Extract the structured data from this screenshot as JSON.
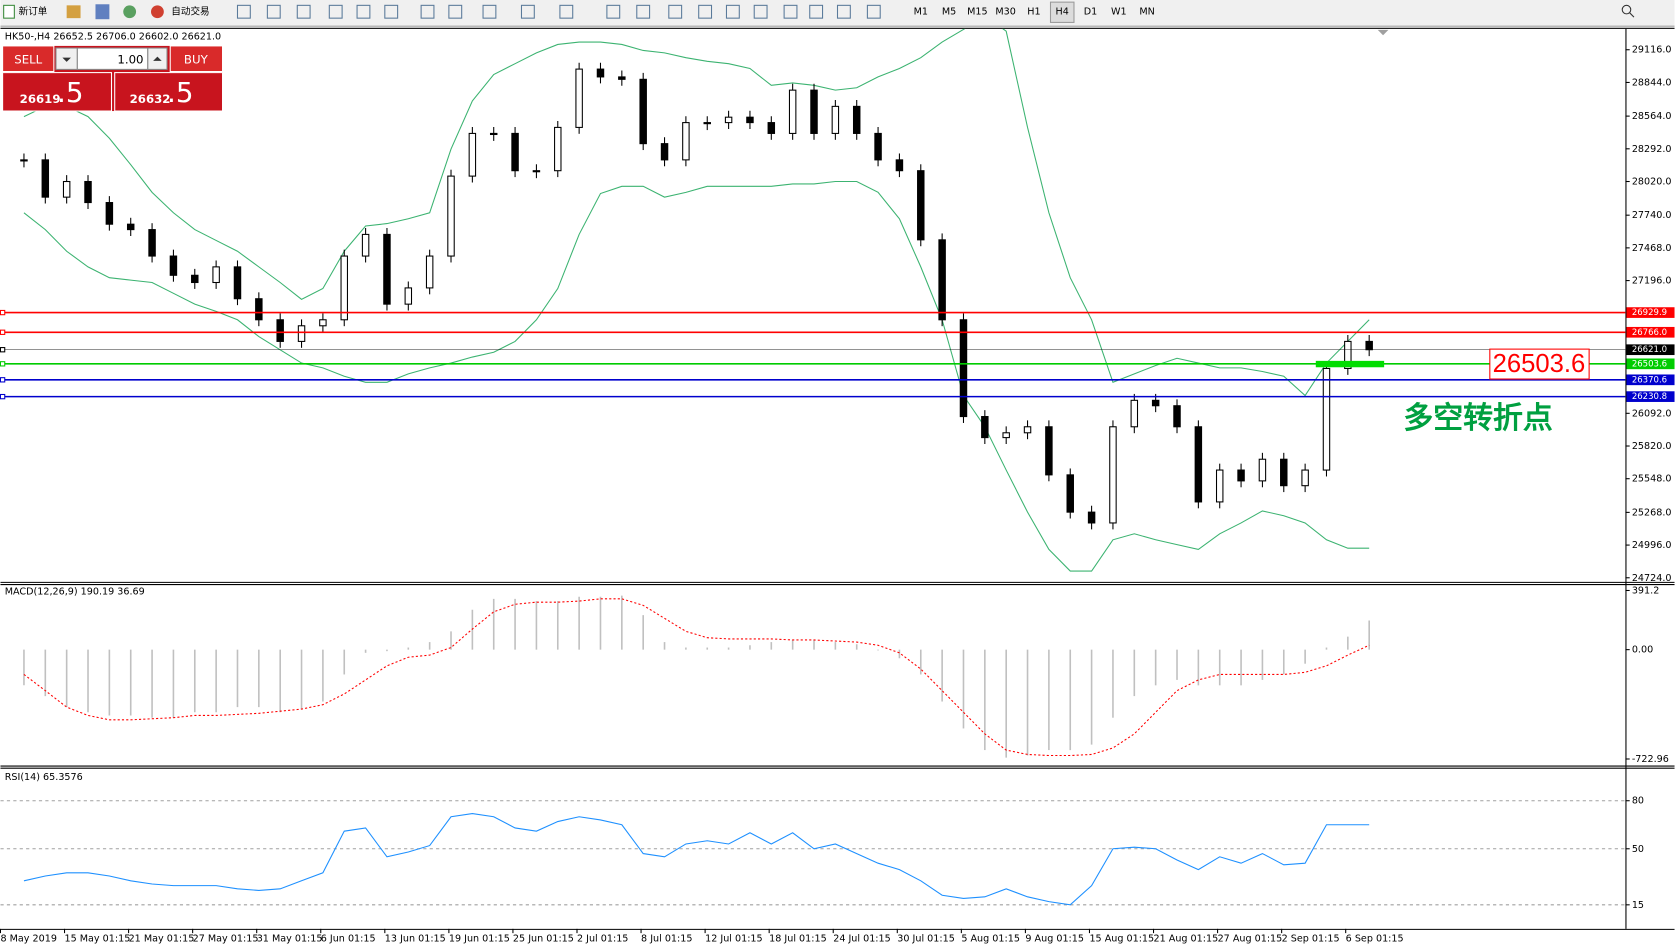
{
  "toolbar": {
    "new_order": "新订单",
    "auto_trading": "自动交易",
    "timeframes": [
      "M1",
      "M5",
      "M15",
      "M30",
      "H1",
      "H4",
      "D1",
      "W1",
      "MN"
    ]
  },
  "trade_panel": {
    "sell": "SELL",
    "buy": "BUY",
    "lots": "1.00",
    "bid": "26619",
    "bid_pips": ".5",
    "ask": "26632",
    "ask_pips": ".5"
  },
  "chart_data": [
    {
      "type": "candlestick",
      "title": "HK50-,H4  26652.5 26706.0 26602.0 26621.0",
      "categories": [
        "8 May 2019",
        null,
        null,
        "15 May 01:15",
        null,
        null,
        "21 May 01:15",
        null,
        null,
        "27 May 01:15",
        null,
        null,
        "31 May 01:15",
        null,
        null,
        "6 Jun 01:15",
        null,
        null,
        "13 Jun 01:15",
        null,
        null,
        "19 Jun 01:15",
        null,
        null,
        "25 Jun 01:15",
        null,
        null,
        "2 Jul 01:15",
        null,
        null,
        "8 Jul 01:15",
        null,
        null,
        "12 Jul 01:15",
        null,
        null,
        "18 Jul 01:15",
        null,
        null,
        "24 Jul 01:15",
        null,
        null,
        "30 Jul 01:15",
        null,
        null,
        "5 Aug 01:15",
        null,
        null,
        "9 Aug 01:15",
        null,
        null,
        "15 Aug 01:15",
        null,
        null,
        "21 Aug 01:15",
        null,
        null,
        "27 Aug 01:15",
        null,
        null,
        "2 Sep 01:15",
        null,
        null,
        "6 Sep 01:15"
      ],
      "values": [
        28200,
        27890,
        28020,
        27845,
        27665,
        27620,
        27400,
        27240,
        27180,
        27310,
        27045,
        26870,
        26690,
        26820,
        26870,
        27400,
        27580,
        27000,
        27135,
        27400,
        28065,
        28420,
        28420,
        28110,
        28110,
        28470,
        28955,
        28890,
        28870,
        28335,
        28200,
        28510,
        28510,
        28555,
        28510,
        28420,
        28780,
        28420,
        28645,
        28420,
        28200,
        28110,
        27535,
        26870,
        26065,
        25890,
        25930,
        25980,
        25580,
        25270,
        25180,
        25980,
        26200,
        26155,
        25980,
        25355,
        25620,
        25530,
        25710,
        25490,
        25620,
        26465,
        26690,
        26621
      ],
      "color": "#000000",
      "bands": {
        "color": "#3cb371",
        "upper": [
          28560,
          28645,
          28645,
          28560,
          28380,
          28160,
          27930,
          27760,
          27620,
          27530,
          27440,
          27310,
          27180,
          27040,
          27130,
          27440,
          27650,
          27670,
          27710,
          27760,
          28290,
          28690,
          28910,
          29000,
          29090,
          29160,
          29180,
          29180,
          29160,
          29110,
          29090,
          29050,
          29020,
          29000,
          28960,
          28820,
          28840,
          28820,
          28780,
          28800,
          28890,
          28960,
          29050,
          29180,
          29285,
          29400,
          29270,
          28470,
          27760,
          27220,
          26870,
          26350,
          26420,
          26490,
          26550,
          26510,
          26470,
          26470,
          26440,
          26400,
          26240,
          26510,
          26690,
          26870
        ],
        "lower": [
          27760,
          27620,
          27440,
          27310,
          27220,
          27200,
          27180,
          27090,
          27000,
          26940,
          26870,
          26730,
          26620,
          26510,
          26470,
          26400,
          26350,
          26350,
          26420,
          26470,
          26510,
          26560,
          26600,
          26690,
          26870,
          27130,
          27580,
          27920,
          27980,
          27980,
          27890,
          27930,
          27980,
          27980,
          27980,
          27980,
          28000,
          28000,
          28020,
          28020,
          27930,
          27710,
          27310,
          26870,
          26240,
          25980,
          25620,
          25270,
          24960,
          24780,
          24780,
          25040,
          25090,
          25040,
          25000,
          24960,
          25090,
          25180,
          25280,
          25240,
          25180,
          25040,
          24970,
          24970
        ]
      },
      "ylim": [
        24690,
        29290
      ],
      "yticks": [
        {
          "value": 29116,
          "label": "29116.0"
        },
        {
          "value": 28844,
          "label": "28844.0"
        },
        {
          "value": 28564,
          "label": "28564.0"
        },
        {
          "value": 28292,
          "label": "28292.0"
        },
        {
          "value": 28020,
          "label": "28020.0"
        },
        {
          "value": 27740,
          "label": "27740.0"
        },
        {
          "value": 27468,
          "label": "27468.0"
        },
        {
          "value": 27196,
          "label": "27196.0"
        },
        {
          "value": 26092,
          "label": "26092.0"
        },
        {
          "value": 25820,
          "label": "25820.0"
        },
        {
          "value": 25548,
          "label": "25548.0"
        },
        {
          "value": 25268,
          "label": "25268.0"
        },
        {
          "value": 24996,
          "label": "24996.0"
        },
        {
          "value": 24724,
          "label": "24724.0"
        }
      ],
      "levels": [
        {
          "value": 26929.9,
          "label": "26929.9",
          "color": "#ff0000"
        },
        {
          "value": 26766,
          "label": "26766.0",
          "color": "#ff0000"
        },
        {
          "value": 26621,
          "label": "26621.0",
          "color": "#000000"
        },
        {
          "value": 26503.6,
          "label": "26503.6",
          "color": "#00cc00"
        },
        {
          "value": 26370.6,
          "label": "26370.6",
          "color": "#0000cd"
        },
        {
          "value": 26230.8,
          "label": "26230.8",
          "color": "#0000cd"
        }
      ],
      "annotations": [
        {
          "text": "26503.6",
          "color": "#ff0000"
        },
        {
          "text": "多空转折点",
          "color": "#00a040"
        }
      ]
    },
    {
      "type": "macd",
      "title": "MACD(12,26,9) 190.19 36.69",
      "values": [
        -235,
        -307,
        -380,
        -414,
        -435,
        -435,
        -450,
        -450,
        -414,
        -414,
        -380,
        -380,
        -414,
        -393,
        -343,
        -164,
        -21,
        -10,
        14,
        50,
        121,
        264,
        336,
        336,
        321,
        321,
        350,
        350,
        357,
        228,
        50,
        14,
        14,
        14,
        29,
        50,
        64,
        64,
        50,
        36,
        -5,
        -57,
        -164,
        -343,
        -521,
        -664,
        -714,
        -700,
        -664,
        -664,
        -628,
        -450,
        -307,
        -236,
        -200,
        -236,
        -236,
        -236,
        -200,
        -164,
        -93,
        14,
        86,
        193
      ],
      "color": "#c0c0c0",
      "signal": [
        -164,
        -271,
        -380,
        -435,
        -464,
        -464,
        -457,
        -450,
        -435,
        -435,
        -428,
        -421,
        -407,
        -393,
        -364,
        -293,
        -200,
        -107,
        -50,
        -36,
        14,
        136,
        250,
        300,
        314,
        314,
        321,
        336,
        336,
        293,
        207,
        121,
        79,
        71,
        71,
        71,
        64,
        64,
        57,
        50,
        29,
        -21,
        -128,
        -271,
        -414,
        -557,
        -664,
        -693,
        -700,
        -700,
        -693,
        -650,
        -557,
        -414,
        -271,
        -200,
        -164,
        -164,
        -164,
        -164,
        -150,
        -107,
        -36,
        29
      ],
      "signal_color": "#ff0000",
      "ylim": [
        -766,
        427
      ],
      "yticks": [
        391.2,
        {
          "value": 0,
          "label": "0.00"
        },
        -722.96
      ]
    },
    {
      "type": "line",
      "title": "RSI(14) 65.3576",
      "values": [
        30,
        33,
        35,
        35,
        33,
        30,
        28,
        27,
        27,
        27,
        25,
        24,
        25,
        30,
        35,
        61,
        63,
        45,
        48,
        52,
        70,
        72,
        70,
        63,
        61,
        67,
        70,
        68,
        65,
        47,
        45,
        53,
        55,
        53,
        60,
        53,
        60,
        50,
        53,
        47,
        41,
        37,
        30,
        21,
        19,
        20,
        25,
        20,
        17,
        15,
        27,
        50,
        51,
        50,
        43,
        37,
        45,
        41,
        47,
        40,
        41,
        65,
        65,
        65
      ],
      "color": "#1e90ff",
      "ylim": [
        0,
        100
      ],
      "yticks": [
        80,
        50,
        15
      ]
    }
  ]
}
